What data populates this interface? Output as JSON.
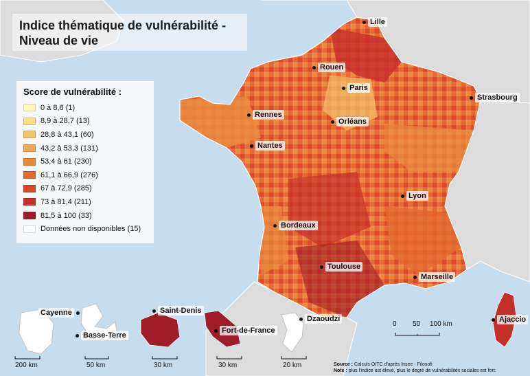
{
  "title_lines": [
    "Indice thématique de vulnérabilité -",
    "Niveau de vie"
  ],
  "legend": {
    "title": "Score de vulnérabilité :",
    "items": [
      {
        "label": "0 à 8,8 (1)",
        "color": "#fff8b8"
      },
      {
        "label": "8,9 à 28,7 (13)",
        "color": "#f7df8a"
      },
      {
        "label": "28,8 à 43,1 (60)",
        "color": "#f3c36b"
      },
      {
        "label": "43,2 à 53,3 (131)",
        "color": "#eda955"
      },
      {
        "label": "53,4 à 61 (230)",
        "color": "#e98a3f"
      },
      {
        "label": "61,1 à 66,9 (276)",
        "color": "#e46a2f"
      },
      {
        "label": "67 à 72,9 (285)",
        "color": "#d94a26"
      },
      {
        "label": "73 à 81,4 (211)",
        "color": "#c4302a"
      },
      {
        "label": "81,5 à 100 (33)",
        "color": "#a01c2a"
      },
      {
        "label": "Données non disponibles (15)",
        "color": "#ffffff"
      }
    ]
  },
  "cities": {
    "lille": "Lille",
    "rouen": "Rouen",
    "paris": "Paris",
    "strasbourg": "Strasbourg",
    "rennes": "Rennes",
    "orleans": "Orléans",
    "nantes": "Nantes",
    "lyon": "Lyon",
    "bordeaux": "Bordeaux",
    "toulouse": "Toulouse",
    "marseille": "Marseille",
    "ajaccio": "Ajaccio",
    "cayenne": "Cayenne",
    "basse_terre": "Basse-Terre",
    "saint_denis": "Saint-Denis",
    "fort_de_france": "Fort-de-France",
    "dzaoudzi": "Dzaoudzi"
  },
  "scales": {
    "france": {
      "zero": "0",
      "mid": "50",
      "end": "100 km"
    },
    "guyane": "200 km",
    "guadeloupe": "50 km",
    "reunion": "30 km",
    "martinique": "30 km",
    "mayotte": "20 km"
  },
  "source": {
    "label": "Source :",
    "text": "Calculs OITC d'après Insee - Filosofi",
    "note_label": "Note :",
    "note_text": "plus l'indice est élevé, plus le degré de vulnérabilités sociales est fort."
  },
  "colors": {
    "sea": "#c6dcef",
    "land_other": "#dcdcdc",
    "land_border": "#ffffff"
  }
}
